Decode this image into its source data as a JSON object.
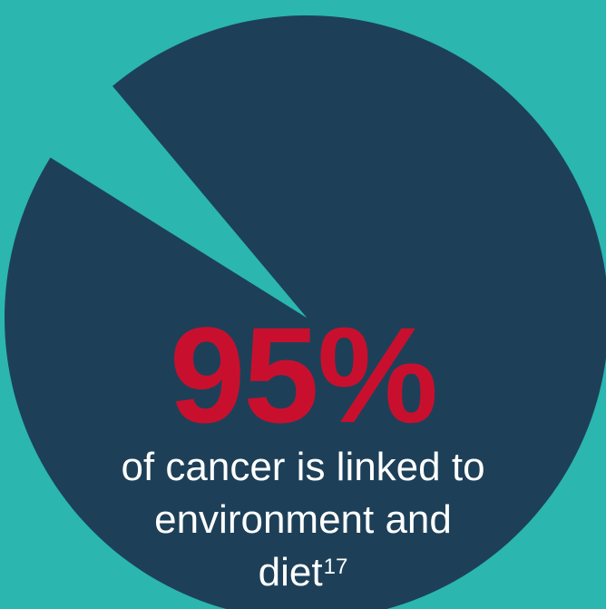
{
  "colors": {
    "background": "#2bb6b0",
    "main_slice": "#1d4058",
    "minor_slice": "#2bb6b0",
    "percent_text": "#c8102e",
    "caption_text": "#ffffff"
  },
  "chart_data": {
    "type": "pie",
    "values": [
      95,
      5
    ],
    "colors": [
      "#1d4058",
      "#2bb6b0"
    ],
    "title": "",
    "annotations": {
      "value_label": "95%",
      "caption_line1": "of cancer is linked to",
      "caption_line2": "environment and",
      "caption_line3": "diet",
      "caption_footnote": "17"
    }
  }
}
